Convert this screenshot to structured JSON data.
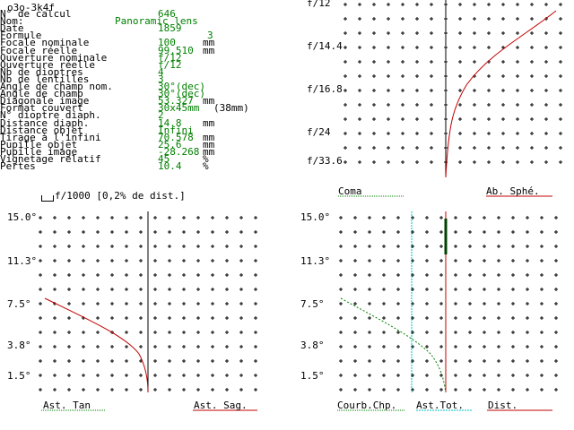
{
  "window": {
    "title": "o3o-3k4f"
  },
  "params": [
    {
      "label": "N° de calcul",
      "value": "646",
      "unit": ""
    },
    {
      "label": "Nom:",
      "value": "Panoramic lens",
      "unit": ""
    },
    {
      "label": "Date",
      "value": "1859",
      "unit": ""
    },
    {
      "label": "Formule",
      "value": "3",
      "unit": ""
    },
    {
      "label": "Focale nominale",
      "value": "100",
      "unit": "mm"
    },
    {
      "label": "Focale réelle",
      "value": "99.510",
      "unit": "mm"
    },
    {
      "label": "Ouverture nominale",
      "value": "f/12",
      "unit": ""
    },
    {
      "label": "Ouverture réelle",
      "value": "f/12",
      "unit": ""
    },
    {
      "label": "Nb de dioptres",
      "value": "4",
      "unit": ""
    },
    {
      "label": "Nb de lentilles",
      "value": "3",
      "unit": ""
    },
    {
      "label": "Angle de champ nom.",
      "value": "30°(dec)",
      "unit": ""
    },
    {
      "label": "Angle de champ",
      "value": "30°(dec)",
      "unit": ""
    },
    {
      "label": "Diagonale image",
      "value": "53.327",
      "unit": "mm"
    },
    {
      "label": "Format couvert",
      "value": "30x45mm",
      "unit": "(38mm)"
    },
    {
      "label": "N° dioptre diaph.",
      "value": "2",
      "unit": ""
    },
    {
      "label": "Distance diaph.",
      "value": "14.8",
      "unit": "mm"
    },
    {
      "label": "Distance objet",
      "value": "Infini",
      "unit": ""
    },
    {
      "label": "Tirage à l'infini",
      "value": "70.578",
      "unit": "mm"
    },
    {
      "label": "Pupille objet",
      "value": "25.6",
      "unit": "mm"
    },
    {
      "label": "Pupille image",
      "value": "-28.268",
      "unit": "mm"
    },
    {
      "label": "Vignetage relatif",
      "value": "45",
      "unit": "%"
    },
    {
      "label": "Pertes",
      "value": "10.4",
      "unit": "%"
    }
  ],
  "scale_note": "f/1000 [0,2% de dist.]",
  "top_right": {
    "y_ticks": [
      "f/12",
      "f/14.4",
      "f/16.8",
      "f/24",
      "f/33.6"
    ],
    "legend_left": "Coma",
    "legend_right": "Ab. Sphé."
  },
  "bottom_left": {
    "y_ticks": [
      "15.0°",
      "11.3°",
      "7.5°",
      "3.8°",
      "1.5°"
    ],
    "legend_left": "Ast. Tan",
    "legend_right": "Ast. Sag."
  },
  "bottom_right": {
    "y_ticks": [
      "15.0°",
      "11.3°",
      "7.5°",
      "3.8°",
      "1.5°"
    ],
    "legend_1": "Courb.Chp.",
    "legend_2": "Ast.Tot.",
    "legend_3": "Dist."
  },
  "colors": {
    "green": "#008000",
    "red": "#c00000",
    "cyan": "#00c0c0",
    "axis": "#000000"
  }
}
